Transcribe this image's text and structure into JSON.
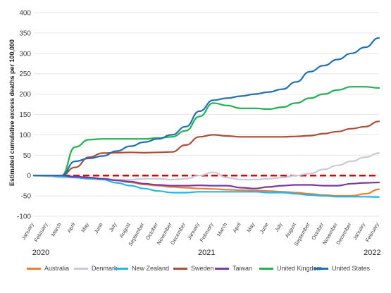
{
  "chart_data": {
    "type": "line",
    "ylabel": "Estimated cumulative excess deaths per 100,000",
    "ylim": [
      -100,
      400
    ],
    "yticks": [
      -100,
      -50,
      0,
      50,
      100,
      150,
      200,
      250,
      300,
      350,
      400
    ],
    "xlabels": [
      "January",
      "February",
      "March",
      "April",
      "May",
      "June",
      "July",
      "August",
      "September",
      "October",
      "November",
      "December",
      "January",
      "February",
      "March",
      "April",
      "May",
      "June",
      "July",
      "August",
      "September",
      "October",
      "November",
      "December",
      "January",
      "February"
    ],
    "years": [
      {
        "label": "2020",
        "index": 0
      },
      {
        "label": "2021",
        "index": 12
      },
      {
        "label": "2022",
        "index": 24
      }
    ],
    "zero_line_color": "#e00000",
    "series": [
      {
        "name": "Australia",
        "color": "#ed7d31",
        "values": [
          0,
          0,
          -2,
          -3,
          -5,
          -8,
          -12,
          -17,
          -22,
          -25,
          -28,
          -30,
          -32,
          -33,
          -35,
          -36,
          -37,
          -38,
          -40,
          -42,
          -45,
          -48,
          -50,
          -50,
          -45,
          -34
        ]
      },
      {
        "name": "Denmark",
        "color": "#c9c9da",
        "values": [
          0,
          -2,
          -5,
          -5,
          -8,
          -8,
          -10,
          -10,
          -8,
          -8,
          -10,
          -8,
          0,
          8,
          -5,
          -10,
          -10,
          -8,
          -5,
          0,
          5,
          15,
          25,
          35,
          45,
          55
        ]
      },
      {
        "name": "New Zealand",
        "color": "#25b6e8",
        "values": [
          0,
          0,
          -2,
          -5,
          -8,
          -10,
          -18,
          -25,
          -32,
          -38,
          -42,
          -42,
          -40,
          -40,
          -40,
          -40,
          -40,
          -42,
          -42,
          -45,
          -48,
          -50,
          -52,
          -52,
          -52,
          -53
        ]
      },
      {
        "name": "Sweden",
        "color": "#a94e3a",
        "values": [
          0,
          0,
          0,
          20,
          45,
          55,
          56,
          57,
          56,
          57,
          58,
          75,
          95,
          100,
          97,
          95,
          95,
          95,
          95,
          96,
          98,
          103,
          108,
          115,
          120,
          133
        ]
      },
      {
        "name": "Taiwan",
        "color": "#7a3a9e",
        "values": [
          0,
          0,
          0,
          -3,
          -5,
          -8,
          -12,
          -15,
          -20,
          -23,
          -25,
          -25,
          -24,
          -25,
          -25,
          -30,
          -32,
          -28,
          -25,
          -23,
          -23,
          -25,
          -25,
          -20,
          -18,
          -17
        ]
      },
      {
        "name": "United Kingdom",
        "color": "#1fb14e",
        "values": [
          0,
          0,
          0,
          70,
          88,
          90,
          90,
          90,
          90,
          92,
          95,
          110,
          145,
          178,
          172,
          165,
          165,
          163,
          168,
          178,
          190,
          200,
          210,
          218,
          218,
          215
        ]
      },
      {
        "name": "United States",
        "color": "#1e6fb5",
        "values": [
          0,
          0,
          0,
          35,
          42,
          48,
          60,
          72,
          82,
          90,
          100,
          120,
          158,
          185,
          190,
          195,
          200,
          205,
          212,
          230,
          255,
          270,
          285,
          300,
          315,
          338
        ]
      }
    ]
  }
}
